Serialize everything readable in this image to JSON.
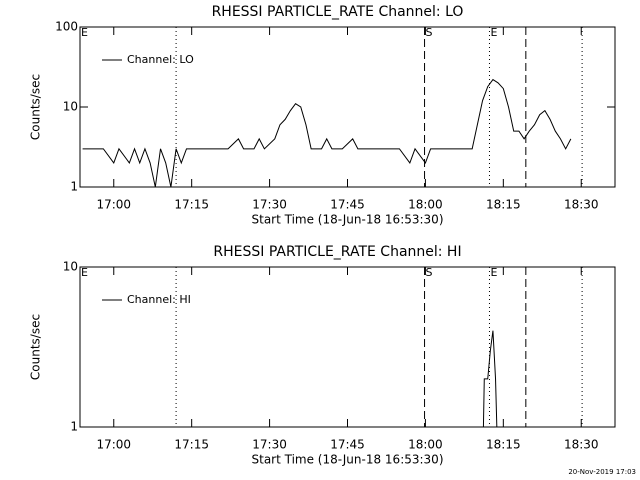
{
  "chart_data": [
    {
      "type": "line",
      "title": "RHESSI PARTICLE_RATE Channel: LO",
      "ylabel": "Counts/sec",
      "xlabel": "Start Time (18-Jun-18 16:53:30)",
      "log_y": true,
      "legend": "upper left",
      "xlim": [
        "16:53:30",
        "18:36:30"
      ],
      "xticks": [
        "17:00",
        "17:15",
        "17:30",
        "17:45",
        "18:00",
        "18:15",
        "18:30"
      ],
      "ylim": [
        1,
        100
      ],
      "yticks": [
        1,
        10,
        100
      ],
      "markers": [
        {
          "time": "16:53:30",
          "label": "E",
          "style": "dotted"
        },
        {
          "time": "17:12:00",
          "style": "dotted"
        },
        {
          "time": "17:59:50",
          "label": "S",
          "style": "dashed"
        },
        {
          "time": "18:12:20",
          "label": "E",
          "style": "dotted"
        },
        {
          "time": "18:19:20",
          "style": "dashed"
        },
        {
          "time": "18:30:10",
          "style": "dotted"
        }
      ],
      "x": [
        "16:54",
        "16:56",
        "16:58",
        "17:00",
        "17:01",
        "17:03",
        "17:04",
        "17:05",
        "17:06",
        "17:07",
        "17:08",
        "17:09",
        "17:10",
        "17:11",
        "17:12",
        "17:13",
        "17:14",
        "17:16",
        "17:18",
        "17:20",
        "17:22",
        "17:24",
        "17:25",
        "17:27",
        "17:28",
        "17:29",
        "17:31",
        "17:32",
        "17:33",
        "17:34",
        "17:35",
        "17:36",
        "17:37",
        "17:38",
        "17:40",
        "17:41",
        "17:42",
        "17:44",
        "17:46",
        "17:47",
        "17:49",
        "17:51",
        "17:53",
        "17:55",
        "17:57",
        "17:58",
        "18:00",
        "18:01",
        "18:03",
        "18:05",
        "18:07",
        "18:09",
        "18:10",
        "18:11",
        "18:12",
        "18:13",
        "18:14",
        "18:15",
        "18:16",
        "18:17",
        "18:18",
        "18:19",
        "18:20",
        "18:21",
        "18:22",
        "18:23",
        "18:24",
        "18:25",
        "18:26",
        "18:27",
        "18:28"
      ],
      "series": [
        {
          "name": "Channel: LO",
          "color": "#000000",
          "values": [
            3,
            3,
            3,
            2,
            3,
            2,
            3,
            2,
            3,
            2,
            1,
            3,
            2,
            1,
            3,
            2,
            3,
            3,
            3,
            3,
            3,
            4,
            3,
            3,
            4,
            3,
            4,
            6,
            7,
            9,
            11,
            10,
            6,
            3,
            3,
            4,
            3,
            3,
            4,
            3,
            3,
            3,
            3,
            3,
            2,
            3,
            2,
            3,
            3,
            3,
            3,
            3,
            6,
            12,
            18,
            22,
            20,
            17,
            10,
            5,
            5,
            4,
            5,
            6,
            8,
            9,
            7,
            5,
            4,
            3,
            4
          ]
        }
      ]
    },
    {
      "type": "line",
      "title": "RHESSI PARTICLE_RATE Channel: HI",
      "ylabel": "Counts/sec",
      "xlabel": "Start Time (18-Jun-18 16:53:30)",
      "log_y": true,
      "legend": "upper left",
      "xlim": [
        "16:53:30",
        "18:36:30"
      ],
      "xticks": [
        "17:00",
        "17:15",
        "17:30",
        "17:45",
        "18:00",
        "18:15",
        "18:30"
      ],
      "ylim": [
        1,
        10
      ],
      "yticks": [
        1,
        10
      ],
      "markers": [
        {
          "time": "16:53:30",
          "label": "E",
          "style": "dotted"
        },
        {
          "time": "17:12:00",
          "style": "dotted"
        },
        {
          "time": "17:59:50",
          "label": "S",
          "style": "dashed"
        },
        {
          "time": "18:12:20",
          "label": "E",
          "style": "dotted"
        },
        {
          "time": "18:19:20",
          "style": "dashed"
        },
        {
          "time": "18:30:10",
          "style": "dotted"
        }
      ],
      "x": [
        "18:11:00",
        "18:11:20",
        "18:12:00",
        "18:12:30",
        "18:13:00",
        "18:13:30",
        "18:14:00"
      ],
      "series": [
        {
          "name": "Channel: HI",
          "color": "#000000",
          "values": [
            0.5,
            2,
            2,
            3,
            4,
            2,
            0.5
          ]
        }
      ]
    }
  ],
  "footer": "20-Nov-2019 17:03"
}
